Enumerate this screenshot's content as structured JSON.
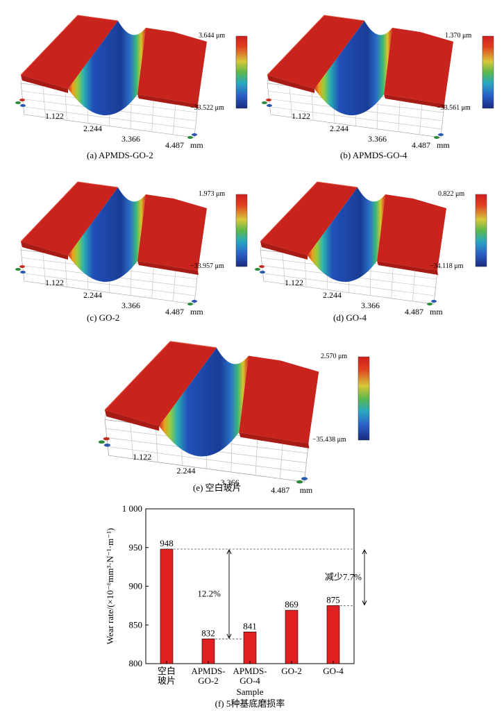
{
  "panels": [
    {
      "caption": "(a) APMDS-GO-2",
      "cmax": "3.644 μm",
      "cmin": "−33.522 μm",
      "ticks": [
        "1.122",
        "2.244",
        "3.366",
        "4.487"
      ],
      "unit": "mm"
    },
    {
      "caption": "(b) APMDS-GO-4",
      "cmax": "1.370 μm",
      "cmin": "−33.561 μm",
      "ticks": [
        "1.122",
        "2.244",
        "3.366",
        "4.487"
      ],
      "unit": "mm"
    },
    {
      "caption": "(c) GO-2",
      "cmax": "1.973 μm",
      "cmin": "−33.957 μm",
      "ticks": [
        "1.122",
        "2.244",
        "3.366",
        "4.487"
      ],
      "unit": "mm"
    },
    {
      "caption": "(d) GO-4",
      "cmax": "0.822 μm",
      "cmin": "−34.118 μm",
      "ticks": [
        "1.122",
        "2.244",
        "3.366",
        "4.487"
      ],
      "unit": "mm"
    },
    {
      "caption": "(e) 空白玻片",
      "cmax": "2.570 μm",
      "cmin": "−35.438 μm",
      "ticks": [
        "1.122",
        "2.244",
        "3.366",
        "4.487"
      ],
      "unit": "mm"
    }
  ],
  "chart_data": {
    "type": "bar",
    "categories": [
      [
        "空白",
        "玻片"
      ],
      [
        "APMDS-",
        "GO-2"
      ],
      [
        "APMDS-",
        "GO-4"
      ],
      [
        "GO-2"
      ],
      [
        "GO-4"
      ]
    ],
    "values": [
      948,
      832,
      841,
      869,
      875
    ],
    "value_labels": [
      "948",
      "832",
      "841",
      "869",
      "875"
    ],
    "xlabel": "Sample",
    "ylabel": "Wear rate/(×10⁻⁶mm³·N⁻¹·m⁻¹)",
    "ylim": [
      800,
      1000
    ],
    "yticks": [
      "800",
      "850",
      "900",
      "950",
      "1 000"
    ],
    "bar_color": "#e02020",
    "annotations": [
      "12.2%",
      "减少7.7%"
    ],
    "caption": "(f) 5种基底磨损率"
  }
}
